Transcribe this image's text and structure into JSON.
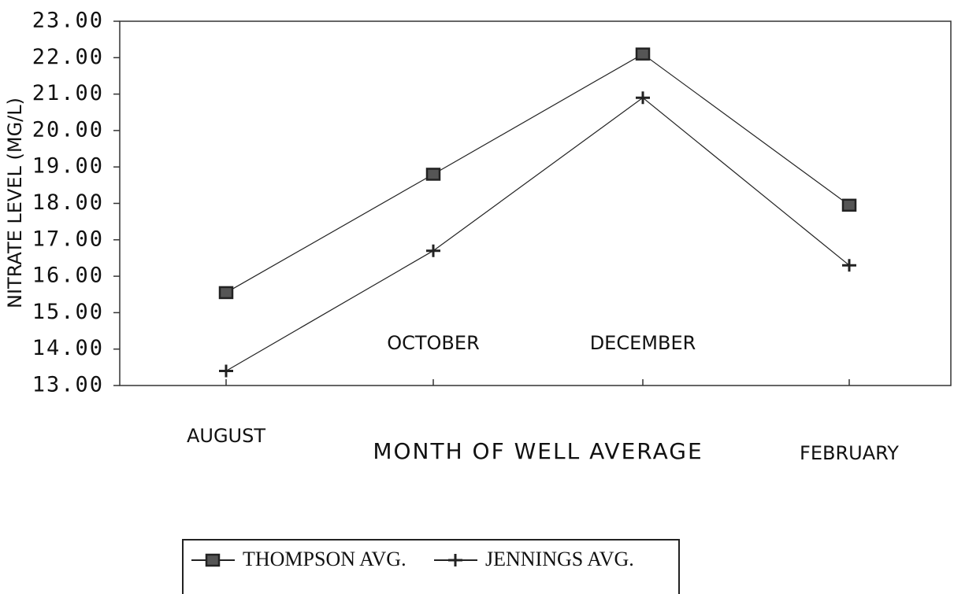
{
  "chart_data": {
    "type": "line",
    "y_label": "NITRATE LEVEL (MG/L)",
    "x_label": "MONTH OF WELL AVERAGE",
    "categories": [
      "AUGUST",
      "OCTOBER",
      "DECEMBER",
      "FEBRUARY"
    ],
    "series": [
      {
        "name": "THOMPSON AVG.",
        "color": "#222222",
        "marker": "square",
        "values": [
          15.55,
          18.8,
          22.1,
          17.95
        ]
      },
      {
        "name": "JENNINGS AVG.",
        "color": "#222222",
        "marker": "plus",
        "values": [
          13.4,
          16.7,
          20.9,
          16.3
        ]
      }
    ],
    "ylim": [
      13,
      23
    ],
    "yticks": [
      {
        "value": 13,
        "label": "13.00"
      },
      {
        "value": 14,
        "label": "14.00"
      },
      {
        "value": 15,
        "label": "15.00"
      },
      {
        "value": 16,
        "label": "16.00"
      },
      {
        "value": 17,
        "label": "17.00"
      },
      {
        "value": 18,
        "label": "18.00"
      },
      {
        "value": 19,
        "label": "19.00"
      },
      {
        "value": 20,
        "label": "20.00"
      },
      {
        "value": 21,
        "label": "21.00"
      },
      {
        "value": 22,
        "label": "22.00"
      },
      {
        "value": 23,
        "label": "23.00"
      }
    ],
    "grid": false,
    "legend": "bottom"
  }
}
